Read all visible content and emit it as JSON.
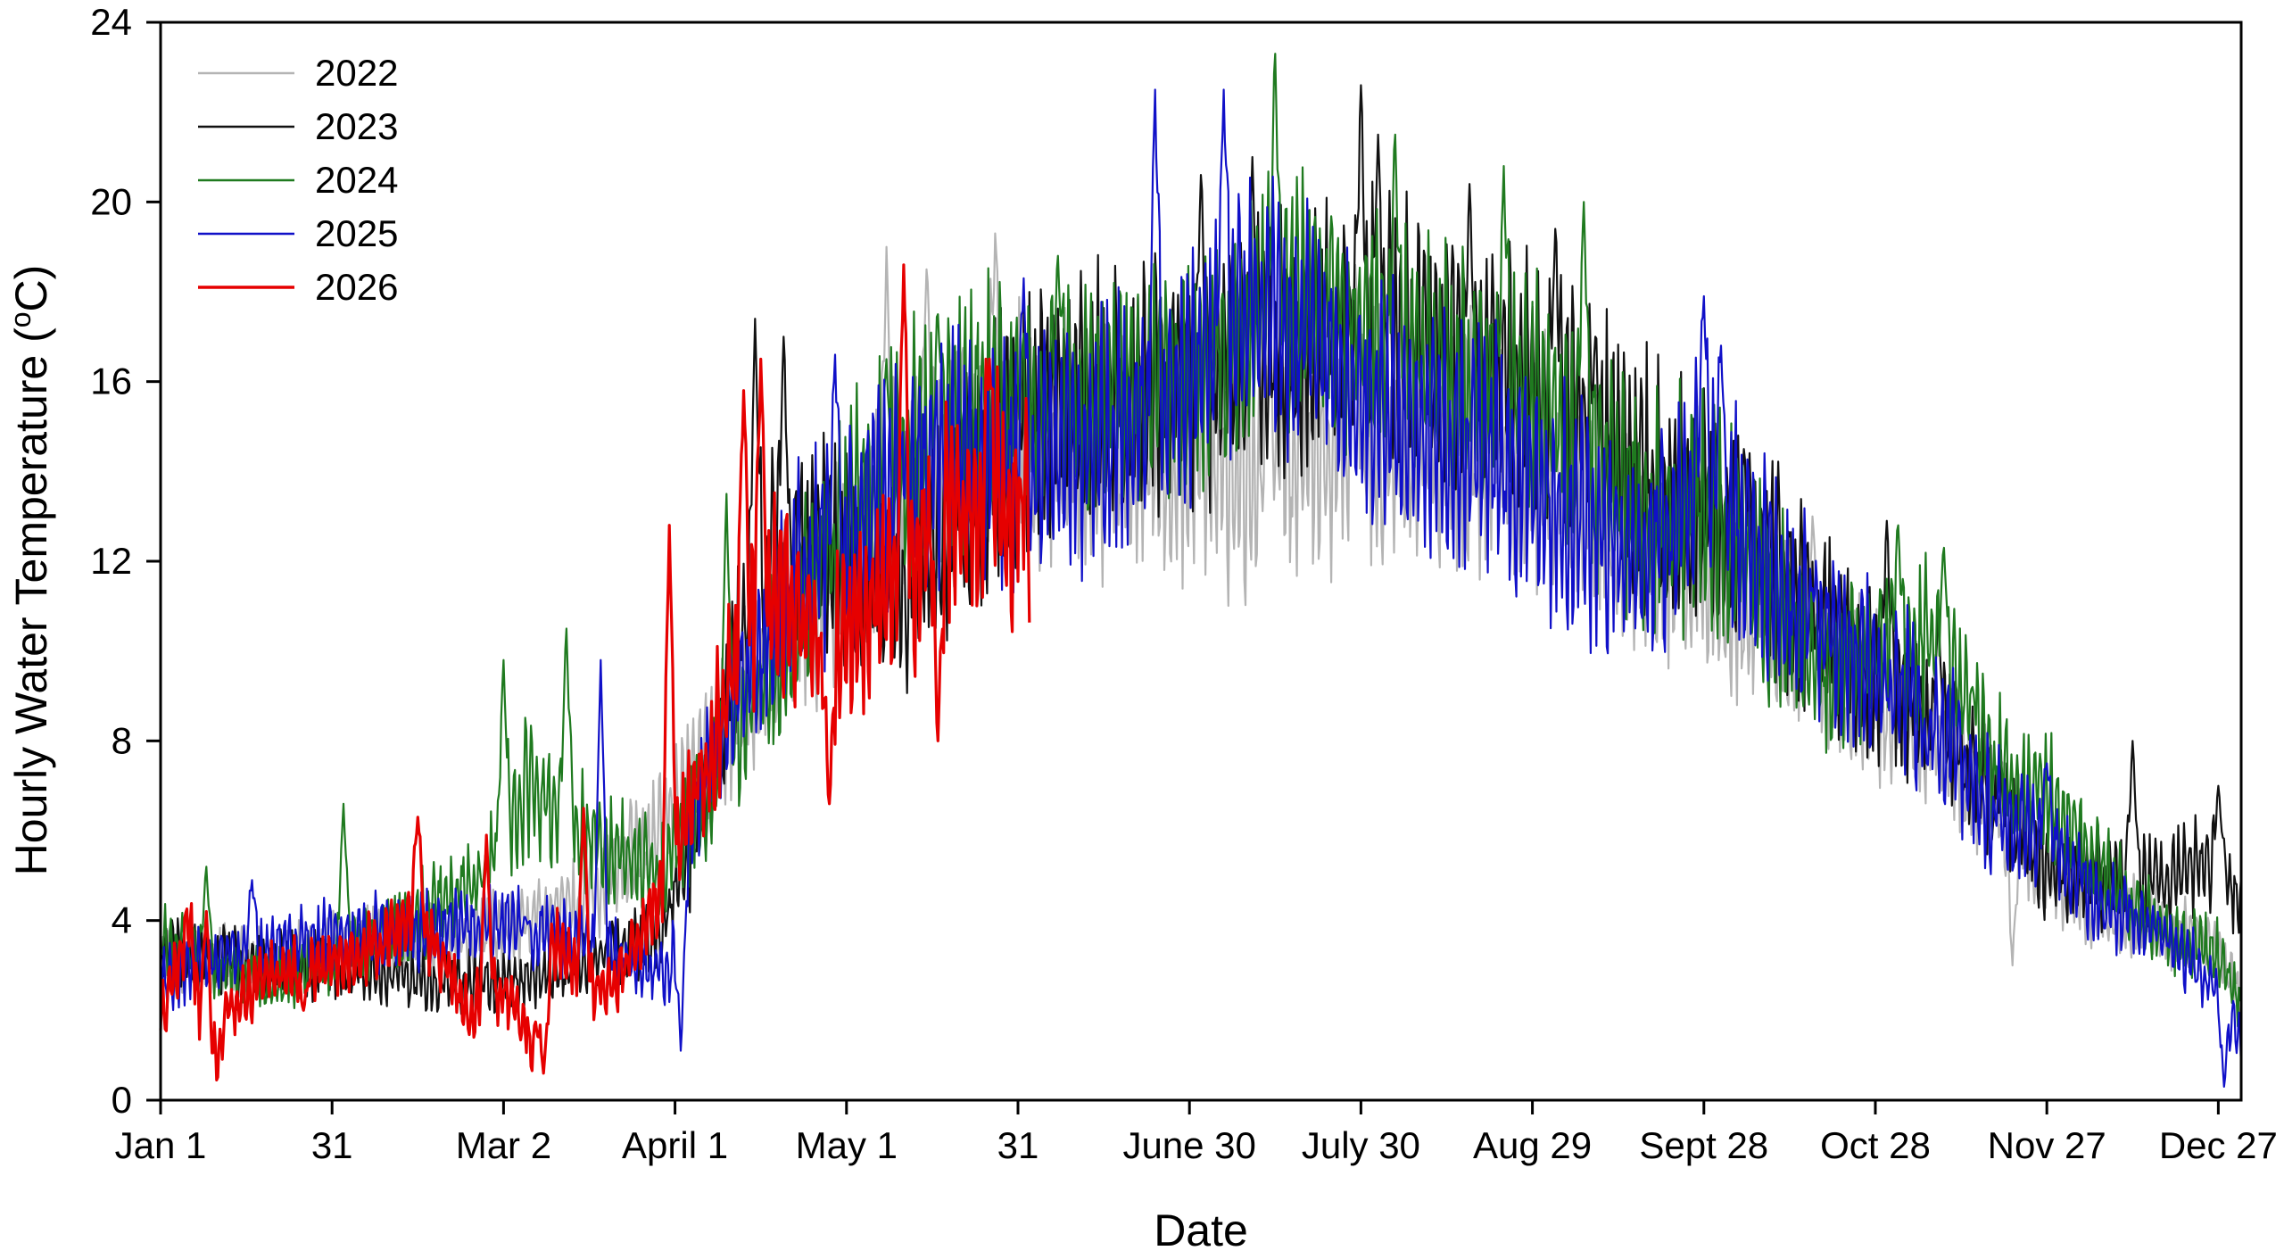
{
  "chart_data": {
    "type": "line",
    "title": "",
    "xlabel": "Date",
    "ylabel_main": "Hourly Water Temperature (",
    "ylabel_sup": "o",
    "ylabel_tail": "C)",
    "xlim": [
      1,
      365
    ],
    "ylim": [
      0,
      24
    ],
    "grid": false,
    "legend_position": "top-left",
    "x_ticks": [
      {
        "day": 1,
        "label": "Jan 1"
      },
      {
        "day": 31,
        "label": "31"
      },
      {
        "day": 61,
        "label": "Mar 2"
      },
      {
        "day": 91,
        "label": "April 1"
      },
      {
        "day": 121,
        "label": "May 1"
      },
      {
        "day": 151,
        "label": "31"
      },
      {
        "day": 181,
        "label": "June 30"
      },
      {
        "day": 211,
        "label": "July 30"
      },
      {
        "day": 241,
        "label": "Aug 29"
      },
      {
        "day": 271,
        "label": "Sept 28"
      },
      {
        "day": 301,
        "label": "Oct 28"
      },
      {
        "day": 331,
        "label": "Nov 27"
      },
      {
        "day": 361,
        "label": "Dec 27"
      }
    ],
    "y_ticks": [
      {
        "value": 0,
        "label": "0"
      },
      {
        "value": 4,
        "label": "4"
      },
      {
        "value": 8,
        "label": "8"
      },
      {
        "value": 12,
        "label": "12"
      },
      {
        "value": 16,
        "label": "16"
      },
      {
        "value": 20,
        "label": "20"
      },
      {
        "value": 24,
        "label": "24"
      }
    ],
    "series": [
      {
        "name": "2022",
        "color": "#b4b4b4",
        "points": [
          [
            1,
            3.0
          ],
          [
            10,
            3.2
          ],
          [
            20,
            3.0
          ],
          [
            31,
            3.4
          ],
          [
            45,
            3.6
          ],
          [
            61,
            3.8
          ],
          [
            75,
            4.4
          ],
          [
            91,
            6.5
          ],
          [
            100,
            8.5
          ],
          [
            110,
            10.5
          ],
          [
            121,
            11.8
          ],
          [
            131,
            13.5
          ],
          [
            141,
            14.5
          ],
          [
            151,
            14.8
          ],
          [
            161,
            14.5
          ],
          [
            171,
            14.3
          ],
          [
            181,
            14.2
          ],
          [
            191,
            14.0
          ],
          [
            201,
            14.3
          ],
          [
            211,
            14.6
          ],
          [
            221,
            14.8
          ],
          [
            231,
            14.6
          ],
          [
            241,
            14.2
          ],
          [
            251,
            13.4
          ],
          [
            261,
            12.6
          ],
          [
            271,
            11.8
          ],
          [
            281,
            10.8
          ],
          [
            291,
            9.8
          ],
          [
            301,
            9.0
          ],
          [
            311,
            8.2
          ],
          [
            321,
            6.8
          ],
          [
            331,
            5.0
          ],
          [
            341,
            4.2
          ],
          [
            351,
            4.0
          ],
          [
            361,
            3.4
          ],
          [
            365,
            2.2
          ]
        ],
        "spikes": [
          [
            128,
            19.0
          ],
          [
            135,
            18.5
          ],
          [
            147,
            19.3
          ],
          [
            195,
            16.5
          ],
          [
            210,
            18.6
          ],
          [
            255,
            11.8
          ],
          [
            290,
            13.0
          ],
          [
            325,
            3.0
          ]
        ]
      },
      {
        "name": "2023",
        "color": "#111111",
        "points": [
          [
            1,
            3.2
          ],
          [
            10,
            3.2
          ],
          [
            20,
            3.0
          ],
          [
            31,
            3.0
          ],
          [
            40,
            2.8
          ],
          [
            50,
            2.6
          ],
          [
            61,
            2.6
          ],
          [
            75,
            3.0
          ],
          [
            88,
            3.6
          ],
          [
            95,
            6.0
          ],
          [
            104,
            11.0
          ],
          [
            110,
            12.5
          ],
          [
            121,
            12.0
          ],
          [
            131,
            11.5
          ],
          [
            141,
            13.5
          ],
          [
            151,
            15.0
          ],
          [
            161,
            15.6
          ],
          [
            171,
            15.8
          ],
          [
            181,
            16.0
          ],
          [
            191,
            16.5
          ],
          [
            201,
            17.0
          ],
          [
            211,
            17.5
          ],
          [
            221,
            17.0
          ],
          [
            231,
            16.5
          ],
          [
            241,
            15.8
          ],
          [
            251,
            14.8
          ],
          [
            261,
            13.8
          ],
          [
            271,
            13.0
          ],
          [
            281,
            12.2
          ],
          [
            291,
            10.8
          ],
          [
            301,
            9.5
          ],
          [
            311,
            8.4
          ],
          [
            321,
            7.0
          ],
          [
            331,
            5.2
          ],
          [
            341,
            4.8
          ],
          [
            351,
            5.0
          ],
          [
            361,
            5.4
          ],
          [
            365,
            4.2
          ]
        ],
        "spikes": [
          [
            105,
            17.4
          ],
          [
            110,
            17.0
          ],
          [
            183,
            20.6
          ],
          [
            192,
            21.0
          ],
          [
            211,
            22.6
          ],
          [
            214,
            21.5
          ],
          [
            230,
            20.4
          ],
          [
            245,
            19.4
          ],
          [
            252,
            17.0
          ],
          [
            278,
            14.5
          ],
          [
            303,
            12.9
          ],
          [
            312,
            10.8
          ],
          [
            346,
            8.0
          ],
          [
            361,
            7.0
          ]
        ]
      },
      {
        "name": "2024",
        "color": "#1f7a1f",
        "points": [
          [
            1,
            3.5
          ],
          [
            10,
            3.0
          ],
          [
            20,
            2.5
          ],
          [
            31,
            3.2
          ],
          [
            45,
            4.0
          ],
          [
            55,
            4.8
          ],
          [
            61,
            5.5
          ],
          [
            65,
            7.0
          ],
          [
            75,
            6.0
          ],
          [
            88,
            5.0
          ],
          [
            95,
            6.5
          ],
          [
            104,
            8.5
          ],
          [
            111,
            10.5
          ],
          [
            121,
            12.8
          ],
          [
            131,
            14.2
          ],
          [
            141,
            15.2
          ],
          [
            151,
            15.6
          ],
          [
            161,
            15.6
          ],
          [
            171,
            15.8
          ],
          [
            181,
            16.0
          ],
          [
            191,
            17.2
          ],
          [
            201,
            18.0
          ],
          [
            211,
            17.2
          ],
          [
            221,
            16.5
          ],
          [
            231,
            16.0
          ],
          [
            241,
            15.5
          ],
          [
            251,
            14.5
          ],
          [
            261,
            13.2
          ],
          [
            271,
            13.0
          ],
          [
            281,
            11.5
          ],
          [
            291,
            9.4
          ],
          [
            301,
            10.0
          ],
          [
            311,
            10.5
          ],
          [
            321,
            7.5
          ],
          [
            331,
            6.8
          ],
          [
            341,
            5.0
          ],
          [
            351,
            3.8
          ],
          [
            361,
            3.2
          ],
          [
            365,
            2.0
          ]
        ],
        "spikes": [
          [
            9,
            5.2
          ],
          [
            33,
            6.6
          ],
          [
            61,
            9.8
          ],
          [
            72,
            10.5
          ],
          [
            100,
            13.5
          ],
          [
            128,
            16.5
          ],
          [
            137,
            17.5
          ],
          [
            158,
            18.8
          ],
          [
            196,
            23.3
          ],
          [
            217,
            21.5
          ],
          [
            236,
            20.8
          ],
          [
            250,
            20.0
          ],
          [
            305,
            12.8
          ],
          [
            313,
            12.3
          ],
          [
            318,
            9.2
          ]
        ]
      },
      {
        "name": "2025",
        "color": "#1010c8",
        "points": [
          [
            1,
            2.6
          ],
          [
            10,
            3.2
          ],
          [
            20,
            3.4
          ],
          [
            31,
            3.6
          ],
          [
            45,
            3.8
          ],
          [
            61,
            3.9
          ],
          [
            75,
            3.5
          ],
          [
            85,
            3.0
          ],
          [
            90,
            2.8
          ],
          [
            95,
            7.0
          ],
          [
            102,
            9.2
          ],
          [
            111,
            11.5
          ],
          [
            121,
            12.5
          ],
          [
            131,
            13.8
          ],
          [
            141,
            14.2
          ],
          [
            151,
            14.0
          ],
          [
            161,
            14.2
          ],
          [
            171,
            15.2
          ],
          [
            181,
            16.0
          ],
          [
            191,
            17.8
          ],
          [
            201,
            17.0
          ],
          [
            211,
            15.5
          ],
          [
            221,
            15.0
          ],
          [
            231,
            14.5
          ],
          [
            241,
            13.8
          ],
          [
            251,
            12.6
          ],
          [
            261,
            12.0
          ],
          [
            271,
            13.8
          ],
          [
            278,
            12.6
          ],
          [
            291,
            10.4
          ],
          [
            301,
            9.5
          ],
          [
            311,
            8.5
          ],
          [
            321,
            6.5
          ],
          [
            331,
            5.8
          ],
          [
            341,
            4.3
          ],
          [
            351,
            3.8
          ],
          [
            361,
            2.4
          ],
          [
            365,
            1.4
          ]
        ],
        "spikes": [
          [
            17,
            4.9
          ],
          [
            65,
            4.0
          ],
          [
            78,
            9.8
          ],
          [
            92,
            1.1
          ],
          [
            119,
            16.6
          ],
          [
            152,
            18.3
          ],
          [
            175,
            22.5
          ],
          [
            187,
            22.5
          ],
          [
            271,
            17.9
          ],
          [
            274,
            16.8
          ],
          [
            290,
            11.4
          ],
          [
            310,
            7.5
          ],
          [
            331,
            7.5
          ],
          [
            362,
            0.3
          ]
        ]
      },
      {
        "name": "2026",
        "color": "#e60000",
        "points": [
          [
            1,
            1.8
          ],
          [
            4,
            3.0
          ],
          [
            6,
            4.0
          ],
          [
            8,
            1.8
          ],
          [
            10,
            0.8
          ],
          [
            13,
            2.0
          ],
          [
            20,
            2.8
          ],
          [
            31,
            3.0
          ],
          [
            40,
            3.5
          ],
          [
            46,
            4.2
          ],
          [
            50,
            3.2
          ],
          [
            55,
            2.0
          ],
          [
            61,
            2.5
          ],
          [
            66,
            1.2
          ],
          [
            70,
            3.5
          ],
          [
            75,
            2.5
          ],
          [
            80,
            2.5
          ],
          [
            86,
            3.8
          ],
          [
            92,
            6.2
          ],
          [
            97,
            7.5
          ],
          [
            101,
            9.5
          ],
          [
            106,
            11.0
          ],
          [
            111,
            11.5
          ],
          [
            117,
            9.5
          ],
          [
            121,
            10.5
          ],
          [
            126,
            11.0
          ],
          [
            131,
            11.5
          ],
          [
            136,
            12.5
          ],
          [
            141,
            13.0
          ],
          [
            146,
            13.5
          ],
          [
            151,
            13.2
          ],
          [
            153,
            13.5
          ]
        ],
        "spikes": [
          [
            9,
            4.2
          ],
          [
            26,
            2.0
          ],
          [
            46,
            6.3
          ],
          [
            58,
            5.9
          ],
          [
            68,
            0.6
          ],
          [
            75,
            6.5
          ],
          [
            90,
            12.8
          ],
          [
            103,
            15.8
          ],
          [
            106,
            16.5
          ],
          [
            118,
            6.6
          ],
          [
            131,
            18.6
          ],
          [
            137,
            8.0
          ],
          [
            146,
            16.5
          ]
        ]
      }
    ]
  }
}
